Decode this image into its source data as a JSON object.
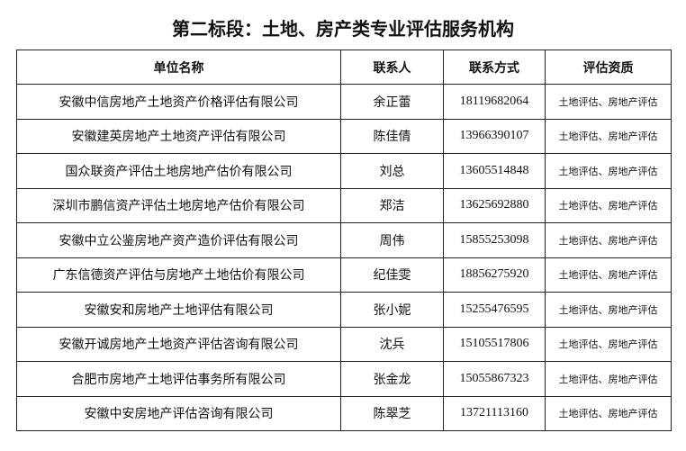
{
  "header": {
    "title": "第二标段：土地、房产类专业评估服务机构"
  },
  "table": {
    "columns": [
      "单位名称",
      "联系人",
      "联系方式",
      "评估资质"
    ],
    "rows": [
      [
        "安徽中信房地产土地资产价格评估有限公司",
        "余正蕾",
        "18119682064",
        "土地评估、房地产评估"
      ],
      [
        "安徽建英房地产土地资产评估有限公司",
        "陈佳倩",
        "13966390107",
        "土地评估、房地产评估"
      ],
      [
        "国众联资产评估土地房地产估价有限公司",
        "刘总",
        "13605514848",
        "土地评估、房地产评估"
      ],
      [
        "深圳市鹏信资产评估土地房地产估价有限公司",
        "郑洁",
        "13625692880",
        "土地评估、房地产评估"
      ],
      [
        "安徽中立公鉴房地产资产造价评估有限公司",
        "周伟",
        "15855253098",
        "土地评估、房地产评估"
      ],
      [
        "广东信德资产评估与房地产土地估价有限公司",
        "纪佳雯",
        "18856275920",
        "土地评估、房地产评估"
      ],
      [
        "安徽安和房地产土地评估有限公司",
        "张小妮",
        "15255476595",
        "土地评估、房地产评估"
      ],
      [
        "安徽开诚房地产土地资产评估咨询有限公司",
        "沈兵",
        "15105517806",
        "土地评估、房地产评估"
      ],
      [
        "合肥市房地产土地评估事务所有限公司",
        "张金龙",
        "15055867323",
        "土地评估、房地产评估"
      ],
      [
        "安徽中安房地产评估咨询有限公司",
        "陈翠芝",
        "13721113160",
        "土地评估、房地产评估"
      ]
    ]
  }
}
